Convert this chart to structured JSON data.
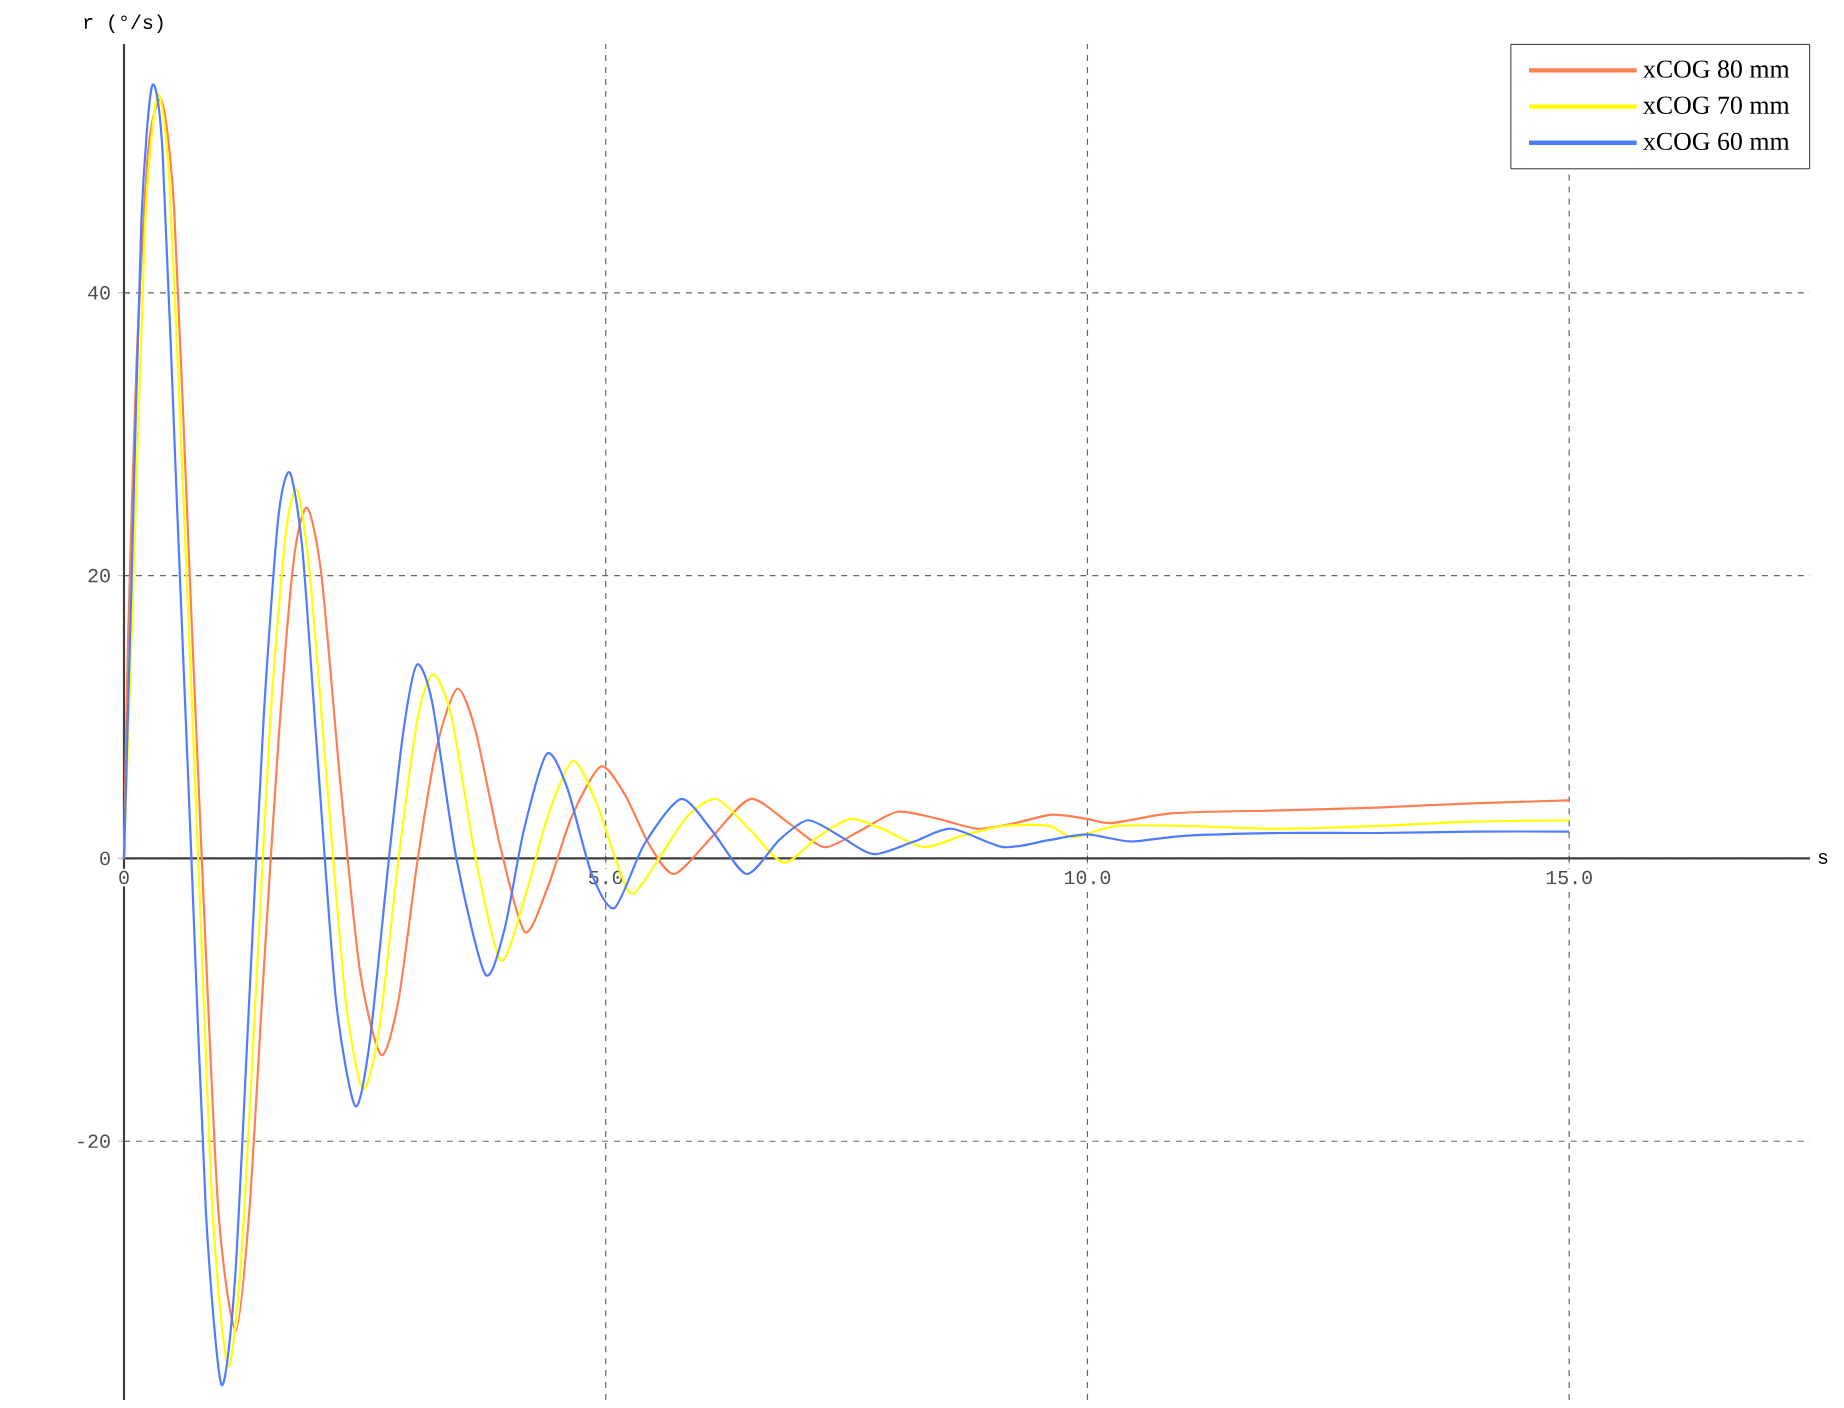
{
  "chart_data": {
    "type": "line",
    "xlabel": "s",
    "ylabel": "r (°/s)",
    "xlim": [
      0,
      17.5
    ],
    "ylim": [
      -38.3,
      57.6
    ],
    "xticks": [
      {
        "value": 0,
        "label": "0"
      },
      {
        "value": 5,
        "label": "5.0"
      },
      {
        "value": 10,
        "label": "10.0"
      },
      {
        "value": 15,
        "label": "15.0"
      }
    ],
    "yticks": [
      -20,
      0,
      20,
      40
    ],
    "grid": true,
    "legend": "top right",
    "marker": "none",
    "line_style": "solid",
    "series": [
      {
        "name": "xCOG 80 mm",
        "color": "#ff7f50",
        "x": [
          0,
          0.04,
          0.13,
          0.25,
          0.39,
          0.52,
          0.67,
          0.82,
          0.98,
          1.16,
          1.3,
          1.45,
          1.6,
          1.76,
          1.9,
          2.05,
          2.25,
          2.45,
          2.67,
          2.85,
          3.05,
          3.25,
          3.46,
          3.65,
          3.9,
          4.16,
          4.4,
          4.65,
          4.95,
          5.2,
          5.45,
          5.71,
          6.1,
          6.5,
          6.9,
          7.27,
          7.65,
          8.03,
          8.45,
          8.86,
          9.25,
          9.63,
          10,
          10.25,
          10.9,
          12,
          13,
          14,
          15
        ],
        "values": [
          0,
          15,
          35,
          50,
          53.6,
          46,
          22,
          -2,
          -25,
          -33.4,
          -25,
          -8,
          8,
          21,
          24.8,
          20,
          5,
          -8,
          -13.9,
          -10,
          0,
          8,
          12,
          9,
          1,
          -5.2,
          -2,
          3,
          6.5,
          4.5,
          1,
          -1.1,
          1.5,
          4.2,
          2.5,
          0.8,
          2,
          3.3,
          2.8,
          2.1,
          2.5,
          3.1,
          2.8,
          2.5,
          3.2,
          3.4,
          3.6,
          3.9,
          4.1
        ]
      },
      {
        "name": "xCOG 70 mm",
        "color": "#ffff00",
        "x": [
          0,
          0.1,
          0.22,
          0.35,
          0.47,
          0.62,
          0.77,
          0.92,
          1.08,
          1.22,
          1.38,
          1.52,
          1.68,
          1.8,
          1.93,
          2.1,
          2.3,
          2.48,
          2.65,
          2.85,
          3.05,
          3.21,
          3.4,
          3.65,
          3.91,
          4.15,
          4.4,
          4.66,
          4.9,
          5.1,
          5.28,
          5.6,
          5.85,
          6.15,
          6.5,
          6.85,
          7.2,
          7.54,
          7.9,
          8.3,
          8.7,
          9.13,
          9.6,
          9.85,
          10.3,
          11,
          12,
          13,
          14,
          15
        ],
        "values": [
          0,
          20,
          45,
          54,
          48,
          25,
          0,
          -25,
          -35.9,
          -28,
          -8,
          10,
          23,
          26,
          20,
          6,
          -10,
          -16.3,
          -12,
          0,
          10,
          13,
          10,
          0,
          -7.2,
          -3,
          3,
          6.9,
          4,
          0,
          -2.5,
          0.5,
          3,
          4.2,
          2,
          -0.3,
          1.5,
          2.8,
          2,
          0.8,
          1.6,
          2.3,
          2.3,
          1.5,
          2.3,
          2.3,
          2.1,
          2.3,
          2.6,
          2.7
        ]
      },
      {
        "name": "xCOG 60 mm",
        "color": "#4f7cff",
        "x": [
          0,
          0.08,
          0.18,
          0.29,
          0.4,
          0.55,
          0.7,
          0.85,
          1.01,
          1.15,
          1.3,
          1.45,
          1.6,
          1.72,
          1.85,
          2,
          2.2,
          2.4,
          2.55,
          2.75,
          2.9,
          3.04,
          3.2,
          3.45,
          3.75,
          3.95,
          4.15,
          4.39,
          4.6,
          4.85,
          5.09,
          5.4,
          5.78,
          6.1,
          6.46,
          6.8,
          7.1,
          7.45,
          7.78,
          8.2,
          8.59,
          9.13,
          9.6,
          10,
          10.45,
          11,
          12,
          13,
          14,
          15
        ],
        "values": [
          0,
          20,
          45,
          54.6,
          50,
          25,
          0,
          -25,
          -37.2,
          -30,
          -10,
          10,
          24,
          27.3,
          22,
          8,
          -10,
          -17.5,
          -13,
          0,
          9,
          13.7,
          11,
          0,
          -8.2,
          -5,
          2,
          7.4,
          5,
          -1,
          -3.5,
          1,
          4.2,
          2,
          -1.1,
          1.3,
          2.7,
          1.5,
          0.3,
          1.2,
          2.1,
          0.8,
          1.3,
          1.7,
          1.2,
          1.6,
          1.8,
          1.8,
          1.9,
          1.9
        ]
      }
    ]
  }
}
